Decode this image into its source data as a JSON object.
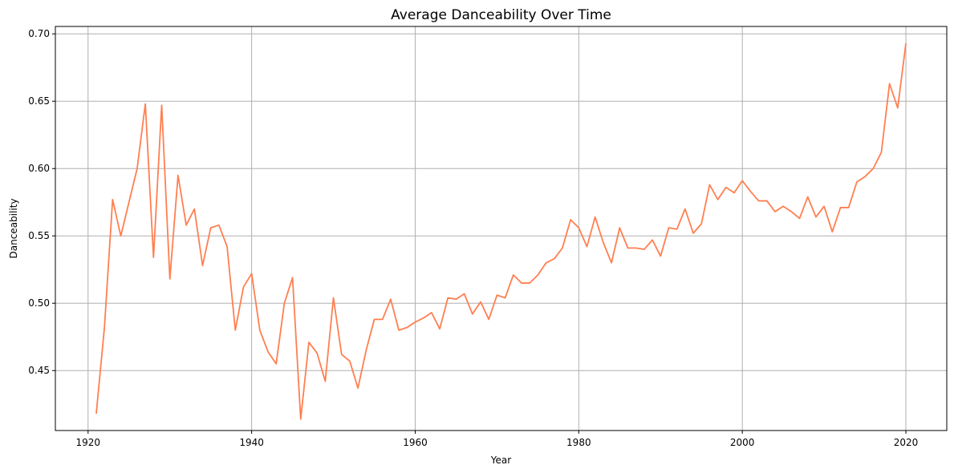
{
  "chart_data": {
    "type": "line",
    "title": "Average Danceability Over Time",
    "xlabel": "Year",
    "ylabel": "Danceability",
    "xlim": [
      1916,
      2025
    ],
    "ylim": [
      0.4055,
      0.7055
    ],
    "xticks": [
      1920,
      1940,
      1960,
      1980,
      2000,
      2020
    ],
    "yticks": [
      0.45,
      0.5,
      0.55,
      0.6,
      0.65,
      0.7
    ],
    "xtick_labels": [
      "1920",
      "1940",
      "1960",
      "1980",
      "2000",
      "2020"
    ],
    "ytick_labels": [
      "0.45",
      "0.50",
      "0.55",
      "0.60",
      "0.65",
      "0.70"
    ],
    "grid": true,
    "color": "#FF7F50",
    "x": [
      1921,
      1922,
      1923,
      1924,
      1925,
      1926,
      1927,
      1928,
      1929,
      1930,
      1931,
      1932,
      1933,
      1934,
      1935,
      1936,
      1937,
      1938,
      1939,
      1940,
      1941,
      1942,
      1943,
      1944,
      1945,
      1946,
      1947,
      1948,
      1949,
      1950,
      1951,
      1952,
      1953,
      1954,
      1955,
      1956,
      1957,
      1958,
      1959,
      1960,
      1961,
      1962,
      1963,
      1964,
      1965,
      1966,
      1967,
      1968,
      1969,
      1970,
      1971,
      1972,
      1973,
      1974,
      1975,
      1976,
      1977,
      1978,
      1979,
      1980,
      1981,
      1982,
      1983,
      1984,
      1985,
      1986,
      1987,
      1988,
      1989,
      1990,
      1991,
      1992,
      1993,
      1994,
      1995,
      1996,
      1997,
      1998,
      1999,
      2000,
      2001,
      2002,
      2003,
      2004,
      2005,
      2006,
      2007,
      2008,
      2009,
      2010,
      2011,
      2012,
      2013,
      2014,
      2015,
      2016,
      2017,
      2018,
      2019,
      2020
    ],
    "y": [
      0.418,
      0.482,
      0.577,
      0.55,
      0.575,
      0.6,
      0.648,
      0.534,
      0.647,
      0.518,
      0.595,
      0.558,
      0.57,
      0.528,
      0.556,
      0.558,
      0.542,
      0.48,
      0.512,
      0.522,
      0.48,
      0.464,
      0.455,
      0.5,
      0.519,
      0.414,
      0.471,
      0.463,
      0.442,
      0.504,
      0.462,
      0.457,
      0.437,
      0.465,
      0.488,
      0.488,
      0.503,
      0.48,
      0.482,
      0.486,
      0.489,
      0.493,
      0.481,
      0.504,
      0.503,
      0.507,
      0.492,
      0.501,
      0.488,
      0.506,
      0.504,
      0.521,
      0.515,
      0.515,
      0.521,
      0.53,
      0.533,
      0.541,
      0.562,
      0.556,
      0.542,
      0.564,
      0.545,
      0.53,
      0.556,
      0.541,
      0.541,
      0.54,
      0.547,
      0.535,
      0.556,
      0.555,
      0.57,
      0.552,
      0.559,
      0.588,
      0.577,
      0.586,
      0.582,
      0.591,
      0.583,
      0.576,
      0.576,
      0.568,
      0.572,
      0.568,
      0.563,
      0.579,
      0.564,
      0.572,
      0.553,
      0.571,
      0.571,
      0.59,
      0.594,
      0.6,
      0.612,
      0.663,
      0.645,
      0.693
    ]
  }
}
